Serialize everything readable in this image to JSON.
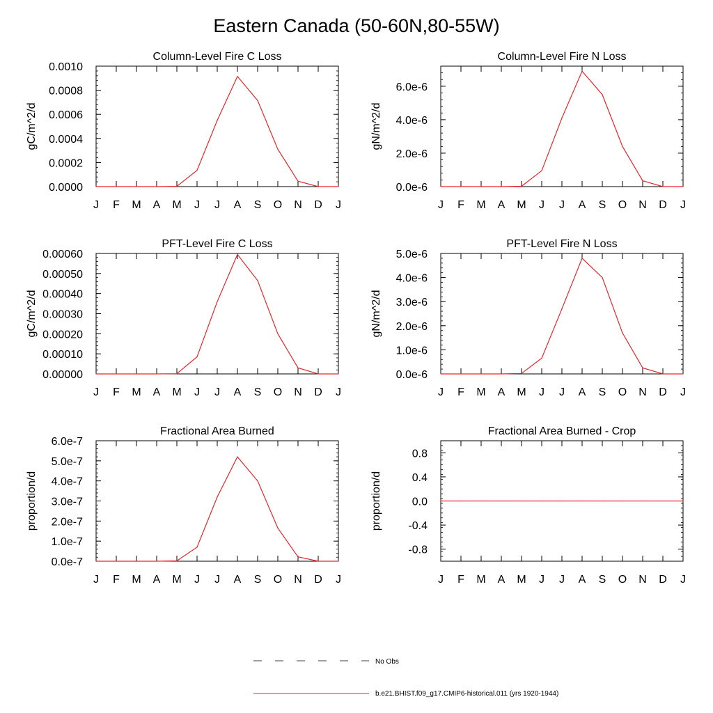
{
  "title": "Eastern Canada (50-60N,80-55W)",
  "month_labels": [
    "J",
    "F",
    "M",
    "A",
    "M",
    "J",
    "J",
    "A",
    "S",
    "O",
    "N",
    "D",
    "J"
  ],
  "colors": {
    "model_line": "#e8242a",
    "obs_line": "#000000",
    "frame": "#000000"
  },
  "legend": {
    "obs_label": "No Obs",
    "model_label": "b.e21.BHIST.f09_g17.CMIP6-historical.011 (yrs 1920-1944)"
  },
  "chart_data": [
    {
      "type": "line",
      "title": "Column-Level Fire C Loss",
      "ylabel": "gC/m^2/d",
      "categories": [
        "J",
        "F",
        "M",
        "A",
        "M",
        "J",
        "J",
        "A",
        "S",
        "O",
        "N",
        "D",
        "J"
      ],
      "ylim": [
        0,
        0.001
      ],
      "yticks": [
        0,
        0.0002,
        0.0004,
        0.0006,
        0.0008,
        0.001
      ],
      "ytick_labels": [
        "0.0000",
        "0.0002",
        "0.0004",
        "0.0006",
        "0.0008",
        "0.0010"
      ],
      "series": [
        {
          "values": [
            0,
            0,
            0,
            0,
            2e-06,
            0.000135,
            0.00055,
            0.000915,
            0.000715,
            0.00031,
            4.5e-05,
            0,
            0
          ]
        }
      ]
    },
    {
      "type": "line",
      "title": "Column-Level Fire N Loss",
      "ylabel": "gN/m^2/d",
      "categories": [
        "J",
        "F",
        "M",
        "A",
        "M",
        "J",
        "J",
        "A",
        "S",
        "O",
        "N",
        "D",
        "J"
      ],
      "ylim": [
        0,
        7.2e-06
      ],
      "yticks": [
        0,
        2e-06,
        4e-06,
        6e-06
      ],
      "ytick_labels": [
        "0.0e-6",
        "2.0e-6",
        "4.0e-6",
        "6.0e-6"
      ],
      "series": [
        {
          "values": [
            0,
            0,
            0,
            0,
            2e-08,
            9.5e-07,
            4.1e-06,
            6.9e-06,
            5.5e-06,
            2.4e-06,
            3.5e-07,
            0,
            0
          ]
        }
      ]
    },
    {
      "type": "line",
      "title": "PFT-Level Fire C Loss",
      "ylabel": "gC/m^2/d",
      "categories": [
        "J",
        "F",
        "M",
        "A",
        "M",
        "J",
        "J",
        "A",
        "S",
        "O",
        "N",
        "D",
        "J"
      ],
      "ylim": [
        0,
        0.0006
      ],
      "yticks": [
        0,
        0.0001,
        0.0002,
        0.0003,
        0.0004,
        0.0005,
        0.0006
      ],
      "ytick_labels": [
        "0.00000",
        "0.00010",
        "0.00020",
        "0.00030",
        "0.00040",
        "0.00050",
        "0.00060"
      ],
      "series": [
        {
          "values": [
            0,
            0,
            0,
            0,
            1e-06,
            8.5e-05,
            0.00036,
            0.000595,
            0.000465,
            0.0002,
            3e-05,
            0,
            0
          ]
        }
      ]
    },
    {
      "type": "line",
      "title": "PFT-Level Fire N Loss",
      "ylabel": "gN/m^2/d",
      "categories": [
        "J",
        "F",
        "M",
        "A",
        "M",
        "J",
        "J",
        "A",
        "S",
        "O",
        "N",
        "D",
        "J"
      ],
      "ylim": [
        0,
        5e-06
      ],
      "yticks": [
        0,
        1e-06,
        2e-06,
        3e-06,
        4e-06,
        5e-06
      ],
      "ytick_labels": [
        "0.0e-6",
        "1.0e-6",
        "2.0e-6",
        "3.0e-6",
        "4.0e-6",
        "5.0e-6"
      ],
      "series": [
        {
          "values": [
            0,
            0,
            0,
            0,
            2e-08,
            6.5e-07,
            2.7e-06,
            4.8e-06,
            4e-06,
            1.7e-06,
            2.5e-07,
            0,
            0
          ]
        }
      ]
    },
    {
      "type": "line",
      "title": "Fractional Area Burned",
      "ylabel": "proportion/d",
      "categories": [
        "J",
        "F",
        "M",
        "A",
        "M",
        "J",
        "J",
        "A",
        "S",
        "O",
        "N",
        "D",
        "J"
      ],
      "ylim": [
        0,
        6e-07
      ],
      "yticks": [
        0,
        1e-07,
        2e-07,
        3e-07,
        4e-07,
        5e-07,
        6e-07
      ],
      "ytick_labels": [
        "0.0e-7",
        "1.0e-7",
        "2.0e-7",
        "3.0e-7",
        "4.0e-7",
        "5.0e-7",
        "6.0e-7"
      ],
      "series": [
        {
          "values": [
            0,
            0,
            0,
            0,
            2e-09,
            7e-08,
            3.2e-07,
            5.2e-07,
            4e-07,
            1.65e-07,
            2.2e-08,
            0,
            0
          ]
        }
      ]
    },
    {
      "type": "line",
      "title": "Fractional Area Burned - Crop",
      "ylabel": "proportion/d",
      "categories": [
        "J",
        "F",
        "M",
        "A",
        "M",
        "J",
        "J",
        "A",
        "S",
        "O",
        "N",
        "D",
        "J"
      ],
      "ylim": [
        -1,
        1
      ],
      "yticks": [
        -0.8,
        -0.4,
        0,
        0.4,
        0.8
      ],
      "ytick_labels": [
        "-0.8",
        "-0.4",
        "0.0",
        "0.4",
        "0.8"
      ],
      "series": [
        {
          "values": [
            0,
            0,
            0,
            0,
            0,
            0,
            0,
            0,
            0,
            0,
            0,
            0,
            0
          ]
        }
      ]
    }
  ]
}
